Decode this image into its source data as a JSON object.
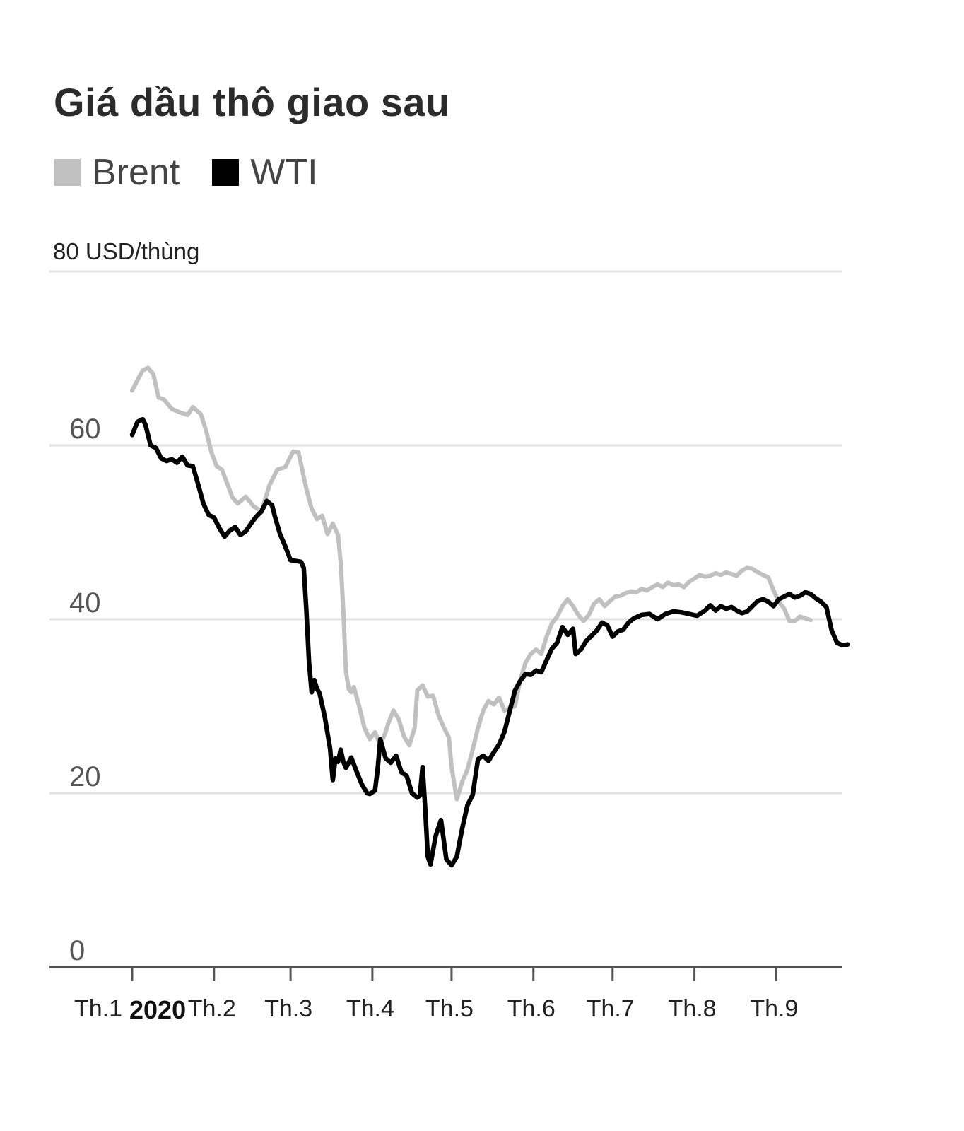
{
  "chart_data": {
    "type": "line",
    "title": "Giá dầu thô giao sau",
    "unit_label": "80 USD/thùng",
    "year_label": "2020",
    "ylim": [
      0,
      80
    ],
    "yticks": [
      {
        "value": 0,
        "label": "0"
      },
      {
        "value": 20,
        "label": "20"
      },
      {
        "value": 40,
        "label": "40"
      },
      {
        "value": 60,
        "label": "60"
      },
      {
        "value": 80,
        "label": ""
      }
    ],
    "xlim": [
      -3,
      268
    ],
    "xticks": [
      {
        "value": 0,
        "label": "Th.1"
      },
      {
        "value": 31,
        "label": "Th.2"
      },
      {
        "value": 60,
        "label": "Th.3"
      },
      {
        "value": 91,
        "label": "Th.4"
      },
      {
        "value": 121,
        "label": "Th.5"
      },
      {
        "value": 152,
        "label": "Th.6"
      },
      {
        "value": 182,
        "label": "Th.7"
      },
      {
        "value": 213,
        "label": "Th.8"
      },
      {
        "value": 244,
        "label": "Th.9"
      }
    ],
    "grid": true,
    "legend_position": "top-left",
    "series": [
      {
        "name": "Brent",
        "color": "#c0c0c0",
        "points": [
          [
            0,
            66.3
          ],
          [
            2,
            67.5
          ],
          [
            4,
            68.6
          ],
          [
            6,
            68.9
          ],
          [
            8,
            68.2
          ],
          [
            10,
            65.5
          ],
          [
            12,
            65.3
          ],
          [
            15,
            64.2
          ],
          [
            18,
            63.8
          ],
          [
            21,
            63.5
          ],
          [
            23,
            64.4
          ],
          [
            26,
            63.6
          ],
          [
            28,
            61.7
          ],
          [
            30,
            59.2
          ],
          [
            32,
            57.6
          ],
          [
            34,
            57.2
          ],
          [
            36,
            55.6
          ],
          [
            38,
            54.0
          ],
          [
            40,
            53.3
          ],
          [
            43,
            54.1
          ],
          [
            46,
            53.0
          ],
          [
            49,
            52.4
          ],
          [
            52,
            55.4
          ],
          [
            55,
            57.2
          ],
          [
            58,
            57.5
          ],
          [
            61,
            59.3
          ],
          [
            63,
            59.2
          ],
          [
            66,
            55.0
          ],
          [
            68,
            52.7
          ],
          [
            70,
            51.5
          ],
          [
            72,
            51.9
          ],
          [
            74,
            49.8
          ],
          [
            76,
            51.0
          ],
          [
            78,
            49.7
          ],
          [
            79,
            46.5
          ],
          [
            80,
            41.0
          ],
          [
            81,
            34.0
          ],
          [
            82,
            32.0
          ],
          [
            83,
            31.6
          ],
          [
            84,
            32.2
          ],
          [
            86,
            30.0
          ],
          [
            88,
            27.5
          ],
          [
            90,
            26.2
          ],
          [
            92,
            27.0
          ],
          [
            94,
            25.5
          ],
          [
            96,
            27.0
          ],
          [
            97,
            28.0
          ],
          [
            99,
            29.5
          ],
          [
            101,
            28.5
          ],
          [
            103,
            26.5
          ],
          [
            105,
            25.5
          ],
          [
            107,
            27.5
          ],
          [
            108,
            31.8
          ],
          [
            110,
            32.4
          ],
          [
            112,
            31.1
          ],
          [
            114,
            31.2
          ],
          [
            116,
            29.0
          ],
          [
            118,
            27.6
          ],
          [
            120,
            26.4
          ],
          [
            121,
            23.0
          ],
          [
            123,
            19.3
          ],
          [
            125,
            21.3
          ],
          [
            127,
            22.7
          ],
          [
            129,
            25.0
          ],
          [
            131,
            27.5
          ],
          [
            133,
            29.5
          ],
          [
            135,
            30.6
          ],
          [
            137,
            30.2
          ],
          [
            139,
            31.0
          ],
          [
            141,
            29.5
          ],
          [
            143,
            29.8
          ],
          [
            145,
            30.0
          ],
          [
            147,
            33.0
          ],
          [
            149,
            35.0
          ],
          [
            151,
            36.0
          ],
          [
            153,
            36.5
          ],
          [
            155,
            36.0
          ],
          [
            157,
            38.0
          ],
          [
            159,
            39.5
          ],
          [
            161,
            40.3
          ],
          [
            163,
            41.5
          ],
          [
            165,
            42.3
          ],
          [
            167,
            41.5
          ],
          [
            169,
            40.5
          ],
          [
            171,
            39.8
          ],
          [
            173,
            40.5
          ],
          [
            175,
            41.8
          ],
          [
            177,
            42.3
          ],
          [
            179,
            41.5
          ],
          [
            181,
            42.1
          ],
          [
            183,
            42.6
          ],
          [
            185,
            42.7
          ],
          [
            187,
            43.0
          ],
          [
            189,
            43.2
          ],
          [
            191,
            43.1
          ],
          [
            193,
            43.5
          ],
          [
            195,
            43.3
          ],
          [
            197,
            43.7
          ],
          [
            199,
            44.0
          ],
          [
            201,
            43.7
          ],
          [
            203,
            44.2
          ],
          [
            205,
            43.9
          ],
          [
            207,
            44.0
          ],
          [
            209,
            43.7
          ],
          [
            211,
            44.3
          ],
          [
            213,
            44.7
          ],
          [
            215,
            45.1
          ],
          [
            217,
            44.9
          ],
          [
            219,
            45.0
          ],
          [
            221,
            45.3
          ],
          [
            223,
            45.1
          ],
          [
            225,
            45.4
          ],
          [
            227,
            45.2
          ],
          [
            229,
            45.0
          ],
          [
            231,
            45.6
          ],
          [
            233,
            45.9
          ],
          [
            235,
            45.8
          ],
          [
            237,
            45.4
          ],
          [
            239,
            45.1
          ],
          [
            241,
            44.8
          ],
          [
            243,
            43.3
          ],
          [
            245,
            42.0
          ],
          [
            247,
            41.2
          ],
          [
            249,
            39.8
          ],
          [
            251,
            39.8
          ],
          [
            253,
            40.3
          ],
          [
            255,
            40.1
          ],
          [
            257,
            39.9
          ]
        ]
      },
      {
        "name": "WTI",
        "color": "#000000",
        "points": [
          [
            0,
            61.2
          ],
          [
            2,
            62.7
          ],
          [
            4,
            63.0
          ],
          [
            5,
            62.4
          ],
          [
            7,
            60.0
          ],
          [
            9,
            59.7
          ],
          [
            11,
            58.5
          ],
          [
            13,
            58.2
          ],
          [
            15,
            58.4
          ],
          [
            17,
            58.0
          ],
          [
            19,
            58.7
          ],
          [
            21,
            57.7
          ],
          [
            23,
            57.6
          ],
          [
            25,
            55.5
          ],
          [
            27,
            53.3
          ],
          [
            29,
            52.0
          ],
          [
            31,
            51.7
          ],
          [
            33,
            50.5
          ],
          [
            35,
            49.5
          ],
          [
            37,
            50.2
          ],
          [
            39,
            50.6
          ],
          [
            41,
            49.7
          ],
          [
            43,
            50.1
          ],
          [
            45,
            51.0
          ],
          [
            47,
            51.8
          ],
          [
            49,
            52.4
          ],
          [
            51,
            53.6
          ],
          [
            53,
            53.1
          ],
          [
            54,
            51.9
          ],
          [
            56,
            49.8
          ],
          [
            58,
            48.4
          ],
          [
            60,
            46.8
          ],
          [
            62,
            46.7
          ],
          [
            64,
            46.6
          ],
          [
            65,
            45.9
          ],
          [
            66,
            41.0
          ],
          [
            67,
            35.0
          ],
          [
            68,
            31.6
          ],
          [
            69,
            33.0
          ],
          [
            70,
            32.0
          ],
          [
            71,
            31.5
          ],
          [
            73,
            28.7
          ],
          [
            74,
            26.9
          ],
          [
            75,
            25.1
          ],
          [
            76,
            21.5
          ],
          [
            77,
            24.0
          ],
          [
            78,
            23.6
          ],
          [
            79,
            25.0
          ],
          [
            80,
            23.6
          ],
          [
            81,
            22.9
          ],
          [
            83,
            24.1
          ],
          [
            85,
            22.5
          ],
          [
            87,
            21.0
          ],
          [
            89,
            20.0
          ],
          [
            90,
            19.9
          ],
          [
            92,
            20.3
          ],
          [
            93,
            22.8
          ],
          [
            94,
            26.2
          ],
          [
            96,
            24.0
          ],
          [
            98,
            23.5
          ],
          [
            100,
            24.3
          ],
          [
            102,
            22.4
          ],
          [
            104,
            22.0
          ],
          [
            106,
            20.0
          ],
          [
            108,
            19.5
          ],
          [
            109,
            19.7
          ],
          [
            110,
            23.0
          ],
          [
            111,
            18.3
          ],
          [
            112,
            12.7
          ],
          [
            113,
            11.8
          ],
          [
            115,
            15.1
          ],
          [
            117,
            16.9
          ],
          [
            119,
            12.4
          ],
          [
            121,
            11.7
          ],
          [
            123,
            12.7
          ],
          [
            125,
            15.9
          ],
          [
            127,
            18.6
          ],
          [
            129,
            19.8
          ],
          [
            131,
            23.9
          ],
          [
            133,
            24.3
          ],
          [
            135,
            23.7
          ],
          [
            137,
            24.7
          ],
          [
            139,
            25.6
          ],
          [
            141,
            27.0
          ],
          [
            143,
            29.4
          ],
          [
            145,
            31.8
          ],
          [
            147,
            32.9
          ],
          [
            149,
            33.7
          ],
          [
            151,
            33.6
          ],
          [
            153,
            34.1
          ],
          [
            155,
            33.9
          ],
          [
            157,
            35.3
          ],
          [
            159,
            36.6
          ],
          [
            161,
            37.3
          ],
          [
            163,
            39.1
          ],
          [
            165,
            38.2
          ],
          [
            167,
            38.9
          ],
          [
            168,
            36.0
          ],
          [
            170,
            36.5
          ],
          [
            172,
            37.5
          ],
          [
            174,
            38.1
          ],
          [
            176,
            38.7
          ],
          [
            178,
            39.6
          ],
          [
            180,
            39.3
          ],
          [
            182,
            38.0
          ],
          [
            184,
            38.6
          ],
          [
            186,
            38.8
          ],
          [
            188,
            39.6
          ],
          [
            190,
            40.1
          ],
          [
            193,
            40.5
          ],
          [
            196,
            40.6
          ],
          [
            199,
            40.0
          ],
          [
            202,
            40.6
          ],
          [
            205,
            40.9
          ],
          [
            208,
            40.8
          ],
          [
            211,
            40.6
          ],
          [
            214,
            40.4
          ],
          [
            217,
            41.0
          ],
          [
            219,
            41.6
          ],
          [
            221,
            41.0
          ],
          [
            223,
            41.5
          ],
          [
            225,
            41.2
          ],
          [
            227,
            41.4
          ],
          [
            229,
            41.0
          ],
          [
            231,
            40.7
          ],
          [
            233,
            40.9
          ],
          [
            235,
            41.5
          ],
          [
            237,
            42.1
          ],
          [
            239,
            42.3
          ],
          [
            241,
            42.0
          ],
          [
            243,
            41.5
          ],
          [
            245,
            42.3
          ],
          [
            247,
            42.6
          ],
          [
            249,
            42.9
          ],
          [
            251,
            42.5
          ],
          [
            253,
            42.7
          ],
          [
            255,
            43.1
          ],
          [
            257,
            42.9
          ],
          [
            259,
            42.4
          ],
          [
            261,
            42.0
          ],
          [
            263,
            41.4
          ],
          [
            265,
            38.7
          ],
          [
            267,
            37.3
          ],
          [
            269,
            37.0
          ],
          [
            271,
            37.1
          ]
        ]
      }
    ]
  }
}
